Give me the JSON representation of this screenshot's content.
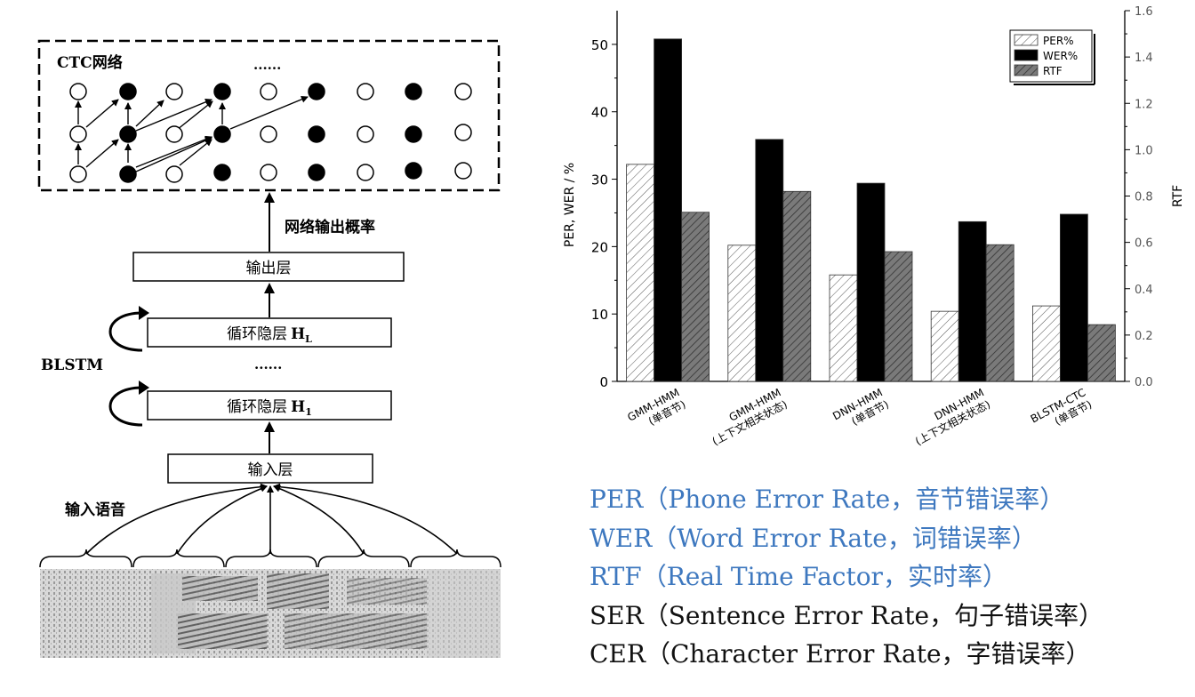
{
  "diagram": {
    "ctc_label": "CTC网络",
    "ctc_ellipsis": "......",
    "prob_label": "网络输出概率",
    "output_layer": "输出层",
    "hidden_top_main": "循环隐层",
    "hidden_top_sub": "L",
    "middle_ellipsis": "......",
    "hidden_bottom_main": "循环隐层",
    "hidden_bottom_sub": "1",
    "blstm_label": "BLSTM",
    "input_layer": "输入层",
    "input_speech_label": "输入语音",
    "hidden_letter": "H"
  },
  "chart_data": {
    "type": "bar",
    "categories": [
      {
        "line1": "GMM-HMM",
        "line2": "(单音节)"
      },
      {
        "line1": "GMM-HMM",
        "line2": "(上下文相关状态)"
      },
      {
        "line1": "DNN-HMM",
        "line2": "(单音节)"
      },
      {
        "line1": "DNN-HMM",
        "line2": "(上下文相关状态)"
      },
      {
        "line1": "BLSTM-CTC",
        "line2": "(单音节)"
      }
    ],
    "series": [
      {
        "name": "PER%",
        "axis": "left",
        "values": [
          32.2,
          20.2,
          15.8,
          10.4,
          11.2
        ],
        "fill": "hatch-light"
      },
      {
        "name": "WER%",
        "axis": "left",
        "values": [
          50.8,
          35.9,
          29.4,
          23.7,
          24.8
        ],
        "fill": "#000000"
      },
      {
        "name": "RTF",
        "axis": "right",
        "values": [
          0.73,
          0.82,
          0.56,
          0.59,
          0.245
        ],
        "fill": "hatch-dark"
      }
    ],
    "ylabel": "PER, WER / %",
    "y2label": "RTF",
    "ylim": [
      0,
      55
    ],
    "y2lim": [
      0,
      1.6
    ],
    "yticks": [
      0,
      10,
      20,
      30,
      40,
      50
    ],
    "y2ticks": [
      "0.0",
      "0.2",
      "0.4",
      "0.6",
      "0.8",
      "1.0",
      "1.2",
      "1.4",
      "1.6"
    ],
    "legend_position": "top-right",
    "grid": false
  },
  "definitions": [
    {
      "text": "PER（Phone Error Rate，音节错误率）",
      "color": "#3e78bf"
    },
    {
      "text": "WER（Word Error Rate，词错误率）",
      "color": "#3e78bf"
    },
    {
      "text": "RTF（Real Time Factor，实时率）",
      "color": "#3e78bf"
    },
    {
      "text": "SER（Sentence Error Rate，句子错误率）",
      "color": "#111111"
    },
    {
      "text": "CER（Character Error Rate，字错误率）",
      "color": "#111111"
    }
  ]
}
